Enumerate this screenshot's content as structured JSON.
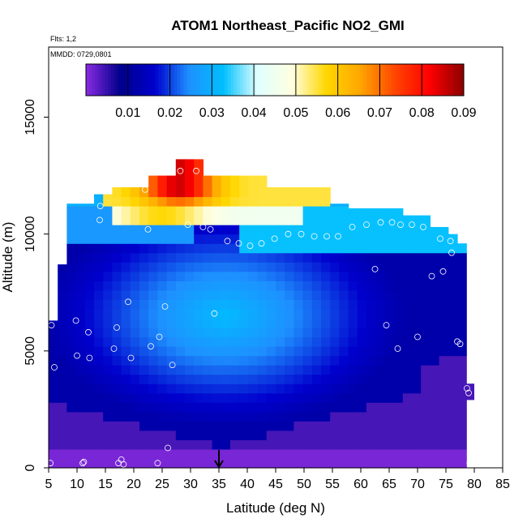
{
  "chart_data": {
    "type": "heatmap",
    "title": "ATOM1 Northeast_Pacific NO2_GMI",
    "info_lines": [
      "Flts: 1,2",
      "MMDD: 0729,0801"
    ],
    "xlabel": "Latitude (deg N)",
    "ylabel": "Altitude (m)",
    "xlim": [
      5,
      85
    ],
    "ylim": [
      0,
      18000
    ],
    "x_ticks": [
      "5",
      "10",
      "15",
      "20",
      "25",
      "30",
      "35",
      "40",
      "45",
      "50",
      "55",
      "60",
      "65",
      "70",
      "75",
      "80",
      "85"
    ],
    "y_ticks": [
      "0",
      "5000",
      "10000",
      "15000"
    ],
    "grid": false,
    "colorbar": {
      "vmin": 0.0,
      "vmax": 0.09,
      "ticks": [
        "0.01",
        "0.02",
        "0.03",
        "0.04",
        "0.05",
        "0.06",
        "0.07",
        "0.08",
        "0.09"
      ],
      "colors": [
        "#8a2be2",
        "#00008b",
        "#0000cd",
        "#1e90ff",
        "#00bfff",
        "#e0ffff",
        "#ffffe0",
        "#ffd700",
        "#ffa500",
        "#ff4500",
        "#ff0000",
        "#8b0000"
      ]
    },
    "marker": {
      "x": 35,
      "label_shape": "down-arrow"
    },
    "observations": [
      {
        "x": 5.3,
        "y": 200
      },
      {
        "x": 5.5,
        "y": 6100
      },
      {
        "x": 6.0,
        "y": 4300
      },
      {
        "x": 7.0,
        "y": 10500
      },
      {
        "x": 7.5,
        "y": 11200
      },
      {
        "x": 9.8,
        "y": 6300
      },
      {
        "x": 10.0,
        "y": 4800
      },
      {
        "x": 11.0,
        "y": 200
      },
      {
        "x": 11.2,
        "y": 250
      },
      {
        "x": 12.0,
        "y": 5800
      },
      {
        "x": 12.2,
        "y": 4700
      },
      {
        "x": 14.0,
        "y": 10600
      },
      {
        "x": 14.1,
        "y": 11200
      },
      {
        "x": 16.5,
        "y": 5100
      },
      {
        "x": 17.0,
        "y": 6000
      },
      {
        "x": 17.3,
        "y": 200
      },
      {
        "x": 17.8,
        "y": 350
      },
      {
        "x": 18.2,
        "y": 150
      },
      {
        "x": 19.0,
        "y": 7100
      },
      {
        "x": 19.5,
        "y": 4700
      },
      {
        "x": 22.0,
        "y": 11900
      },
      {
        "x": 22.5,
        "y": 10200
      },
      {
        "x": 23.0,
        "y": 5200
      },
      {
        "x": 24.2,
        "y": 200
      },
      {
        "x": 24.5,
        "y": 5600
      },
      {
        "x": 25.5,
        "y": 6900
      },
      {
        "x": 26.0,
        "y": 850
      },
      {
        "x": 26.8,
        "y": 4400
      },
      {
        "x": 28.2,
        "y": 12700
      },
      {
        "x": 29.5,
        "y": 10400
      },
      {
        "x": 31.0,
        "y": 12700
      },
      {
        "x": 32.2,
        "y": 10300
      },
      {
        "x": 33.5,
        "y": 10200
      },
      {
        "x": 34.2,
        "y": 6600
      },
      {
        "x": 36.5,
        "y": 9700
      },
      {
        "x": 38.5,
        "y": 9600
      },
      {
        "x": 40.5,
        "y": 9500
      },
      {
        "x": 42.5,
        "y": 9600
      },
      {
        "x": 44.8,
        "y": 9800
      },
      {
        "x": 47.2,
        "y": 10000
      },
      {
        "x": 49.5,
        "y": 10000
      },
      {
        "x": 51.8,
        "y": 9900
      },
      {
        "x": 54.0,
        "y": 9900
      },
      {
        "x": 56.0,
        "y": 9900
      },
      {
        "x": 58.5,
        "y": 10300
      },
      {
        "x": 61.0,
        "y": 10400
      },
      {
        "x": 62.5,
        "y": 8500
      },
      {
        "x": 63.5,
        "y": 10500
      },
      {
        "x": 64.5,
        "y": 6100
      },
      {
        "x": 65.5,
        "y": 10500
      },
      {
        "x": 66.5,
        "y": 5100
      },
      {
        "x": 67.0,
        "y": 10400
      },
      {
        "x": 68.0,
        "y": 11300
      },
      {
        "x": 69.0,
        "y": 10400
      },
      {
        "x": 70.0,
        "y": 5600
      },
      {
        "x": 71.0,
        "y": 10300
      },
      {
        "x": 72.5,
        "y": 8200
      },
      {
        "x": 74.0,
        "y": 9800
      },
      {
        "x": 74.5,
        "y": 8400
      },
      {
        "x": 75.8,
        "y": 9700
      },
      {
        "x": 76.0,
        "y": 9200
      },
      {
        "x": 77.0,
        "y": 5400
      },
      {
        "x": 77.5,
        "y": 5300
      },
      {
        "x": 78.7,
        "y": 3400
      },
      {
        "x": 79.0,
        "y": 3200
      },
      {
        "x": 79.2,
        "y": 200
      }
    ]
  }
}
